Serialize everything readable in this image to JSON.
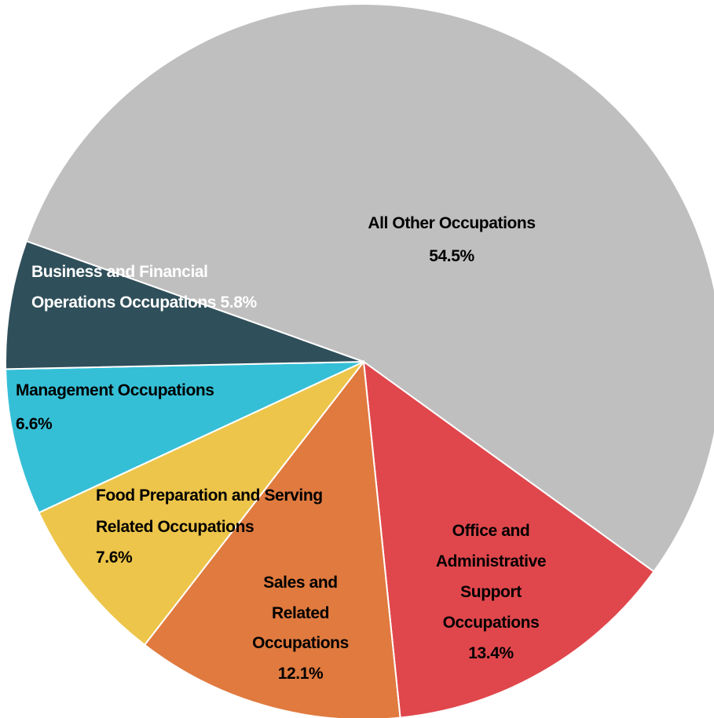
{
  "chart_data": {
    "type": "pie",
    "categories": [
      "All Other Occupations",
      "Office and Administrative Support Occupations",
      "Sales and Related Occupations",
      "Food Preparation and Serving Related Occupations",
      "Management Occupations",
      "Business and Financial Operations Occupations"
    ],
    "values": [
      54.5,
      13.4,
      12.1,
      7.6,
      6.6,
      5.8
    ],
    "value_labels": [
      "54.5%",
      "13.4%",
      "12.1%",
      "7.6%",
      "6.6%",
      "5.8%"
    ],
    "colors": [
      "#bfbfbf",
      "#e0474c",
      "#e07a3f",
      "#edc54a",
      "#35bfd6",
      "#2f4f5a"
    ]
  }
}
